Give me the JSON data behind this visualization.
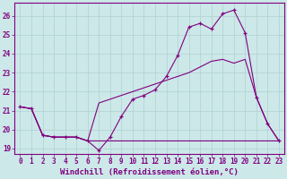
{
  "background_color": "#cce8e8",
  "grid_color": "#b0d0d0",
  "line_color": "#800080",
  "xlabel": "Windchill (Refroidissement éolien,°C)",
  "xlim": [
    -0.5,
    23.5
  ],
  "ylim": [
    18.7,
    26.7
  ],
  "yticks": [
    19,
    20,
    21,
    22,
    23,
    24,
    25,
    26
  ],
  "xticks": [
    0,
    1,
    2,
    3,
    4,
    5,
    6,
    7,
    8,
    9,
    10,
    11,
    12,
    13,
    14,
    15,
    16,
    17,
    18,
    19,
    20,
    21,
    22,
    23
  ],
  "line1_x": [
    0,
    1,
    2,
    3,
    4,
    5,
    6,
    7,
    8,
    9,
    10,
    11,
    12,
    13,
    14,
    15,
    16,
    17,
    18,
    19,
    20,
    21,
    22,
    23
  ],
  "line1_y": [
    21.2,
    21.1,
    19.7,
    19.6,
    19.6,
    19.6,
    19.4,
    18.9,
    19.6,
    20.7,
    21.6,
    21.8,
    22.1,
    22.8,
    23.9,
    25.4,
    25.6,
    25.3,
    26.1,
    26.3,
    25.1,
    21.7,
    20.3,
    19.4
  ],
  "line2_x": [
    0,
    1,
    2,
    3,
    4,
    5,
    6,
    7,
    8,
    9,
    10,
    11,
    12,
    13,
    14,
    15,
    16,
    17,
    18,
    19,
    20,
    21,
    22,
    23
  ],
  "line2_y": [
    21.2,
    21.1,
    19.7,
    19.6,
    19.6,
    19.6,
    19.4,
    21.4,
    21.6,
    21.8,
    22.0,
    22.2,
    22.4,
    22.6,
    22.8,
    23.0,
    23.3,
    23.6,
    23.7,
    23.5,
    23.7,
    21.7,
    20.3,
    19.4
  ],
  "line3_x": [
    0,
    1,
    2,
    3,
    4,
    5,
    6,
    7,
    8,
    9,
    10,
    11,
    12,
    13,
    14,
    15,
    16,
    17,
    18,
    19,
    20,
    21,
    22,
    23
  ],
  "line3_y": [
    21.2,
    21.1,
    19.7,
    19.6,
    19.6,
    19.6,
    19.4,
    19.4,
    19.4,
    19.4,
    19.4,
    19.4,
    19.4,
    19.4,
    19.4,
    19.4,
    19.4,
    19.4,
    19.4,
    19.4,
    19.4,
    19.4,
    19.4,
    19.4
  ],
  "tick_fontsize": 5.5,
  "label_fontsize": 6.5
}
